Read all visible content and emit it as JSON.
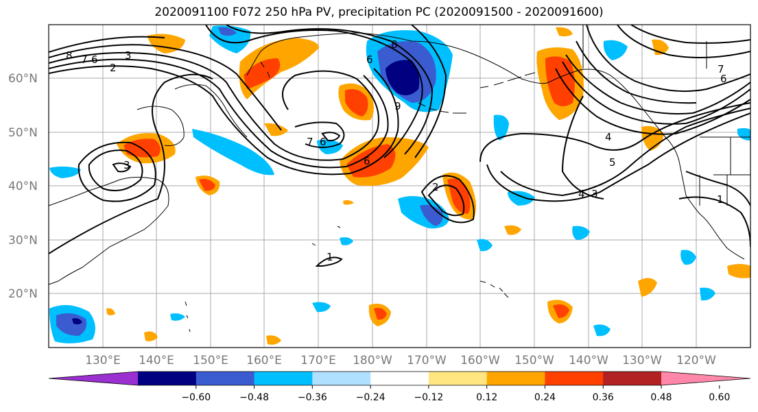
{
  "title": "2020091100 F072 250 hPa PV, precipitation PC (2020091500 - 2020091600)",
  "map": {
    "lon_range": [
      120,
      250
    ],
    "lat_range": [
      10,
      70
    ],
    "lat_labels": [
      "20°N",
      "30°N",
      "40°N",
      "50°N",
      "60°N"
    ],
    "lon_labels": [
      "130°E",
      "140°E",
      "150°E",
      "160°E",
      "170°E",
      "180°W",
      "170°W",
      "160°W",
      "150°W",
      "140°W",
      "130°W",
      "120°W"
    ],
    "gridlines": true
  },
  "colorbar": {
    "ticks": [
      "−0.60",
      "−0.48",
      "−0.36",
      "−0.24",
      "−0.12",
      "0.12",
      "0.24",
      "0.36",
      "0.48",
      "0.60"
    ],
    "colors": [
      "#9b30d0",
      "#000080",
      "#3b5bd0",
      "#00bfff",
      "#b0e0ff",
      "#ffffff",
      "#ffe680",
      "#ffa500",
      "#ff4000",
      "#b22222",
      "#ff88aa"
    ]
  },
  "contour_labels": [
    "8",
    "7",
    "6",
    "3",
    "2",
    "3",
    "7",
    "6",
    "6",
    "2",
    "1",
    "6",
    "8",
    "9",
    "4",
    "5",
    "4",
    "3",
    "6",
    "7",
    "1"
  ]
}
